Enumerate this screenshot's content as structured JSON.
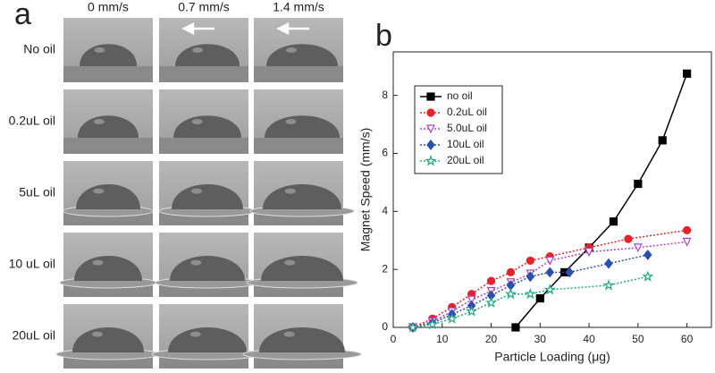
{
  "panel_labels": [
    "a",
    "b"
  ],
  "panel_a": {
    "columns": [
      "0 mm/s",
      "0.7 mm/s",
      "1.4 mm/s"
    ],
    "rows": [
      "No oil",
      "0.2uL oil",
      "5uL oil",
      "10 uL oil",
      "20uL oil"
    ]
  },
  "chart_data": {
    "type": "line",
    "x_label": "Particle Loading (μg)",
    "y_label": "Magnet Speed (mm/s)",
    "xlim": [
      0,
      65
    ],
    "ylim": [
      0,
      9.5
    ],
    "xticks": [
      0,
      10,
      20,
      30,
      40,
      50,
      60
    ],
    "yticks": [
      0,
      2,
      4,
      6,
      8
    ],
    "legend": "upper-left",
    "series": [
      {
        "name": "no oil",
        "color": "#000000",
        "marker": "square",
        "filled": true,
        "line_style": "solid",
        "x": [
          25,
          30,
          35,
          40,
          45,
          50,
          55,
          60
        ],
        "values": [
          0,
          1.0,
          1.9,
          2.75,
          3.65,
          4.95,
          6.45,
          8.75
        ]
      },
      {
        "name": "0.2uL oil",
        "color": "#e8202a",
        "marker": "circle",
        "filled": true,
        "line_style": "dotted",
        "x": [
          4,
          8,
          12,
          16,
          20,
          24,
          28,
          32,
          40,
          48,
          60
        ],
        "values": [
          0,
          0.3,
          0.7,
          1.15,
          1.6,
          1.9,
          2.3,
          2.45,
          2.75,
          3.05,
          3.35
        ]
      },
      {
        "name": "5.0uL oil",
        "color": "#b040c8",
        "marker": "triangle-down",
        "filled": false,
        "line_style": "dotted",
        "x": [
          4,
          8,
          12,
          16,
          20,
          24,
          28,
          32,
          40,
          50,
          60
        ],
        "values": [
          0,
          0.2,
          0.55,
          0.95,
          1.25,
          1.55,
          1.85,
          2.3,
          2.6,
          2.75,
          2.95
        ]
      },
      {
        "name": "10uL oil",
        "color": "#2a4fb0",
        "marker": "diamond",
        "filled": true,
        "line_style": "dotted",
        "x": [
          4,
          8,
          12,
          16,
          20,
          24,
          28,
          32,
          36,
          44,
          52
        ],
        "values": [
          0,
          0.15,
          0.45,
          0.75,
          1.1,
          1.45,
          1.75,
          1.9,
          1.9,
          2.2,
          2.5
        ]
      },
      {
        "name": "20uL oil",
        "color": "#20a880",
        "marker": "star",
        "filled": false,
        "line_style": "dotted",
        "x": [
          4,
          8,
          12,
          16,
          20,
          24,
          28,
          32,
          44,
          52
        ],
        "values": [
          0,
          0.1,
          0.3,
          0.55,
          0.85,
          1.15,
          1.15,
          1.3,
          1.45,
          1.75
        ]
      }
    ]
  }
}
